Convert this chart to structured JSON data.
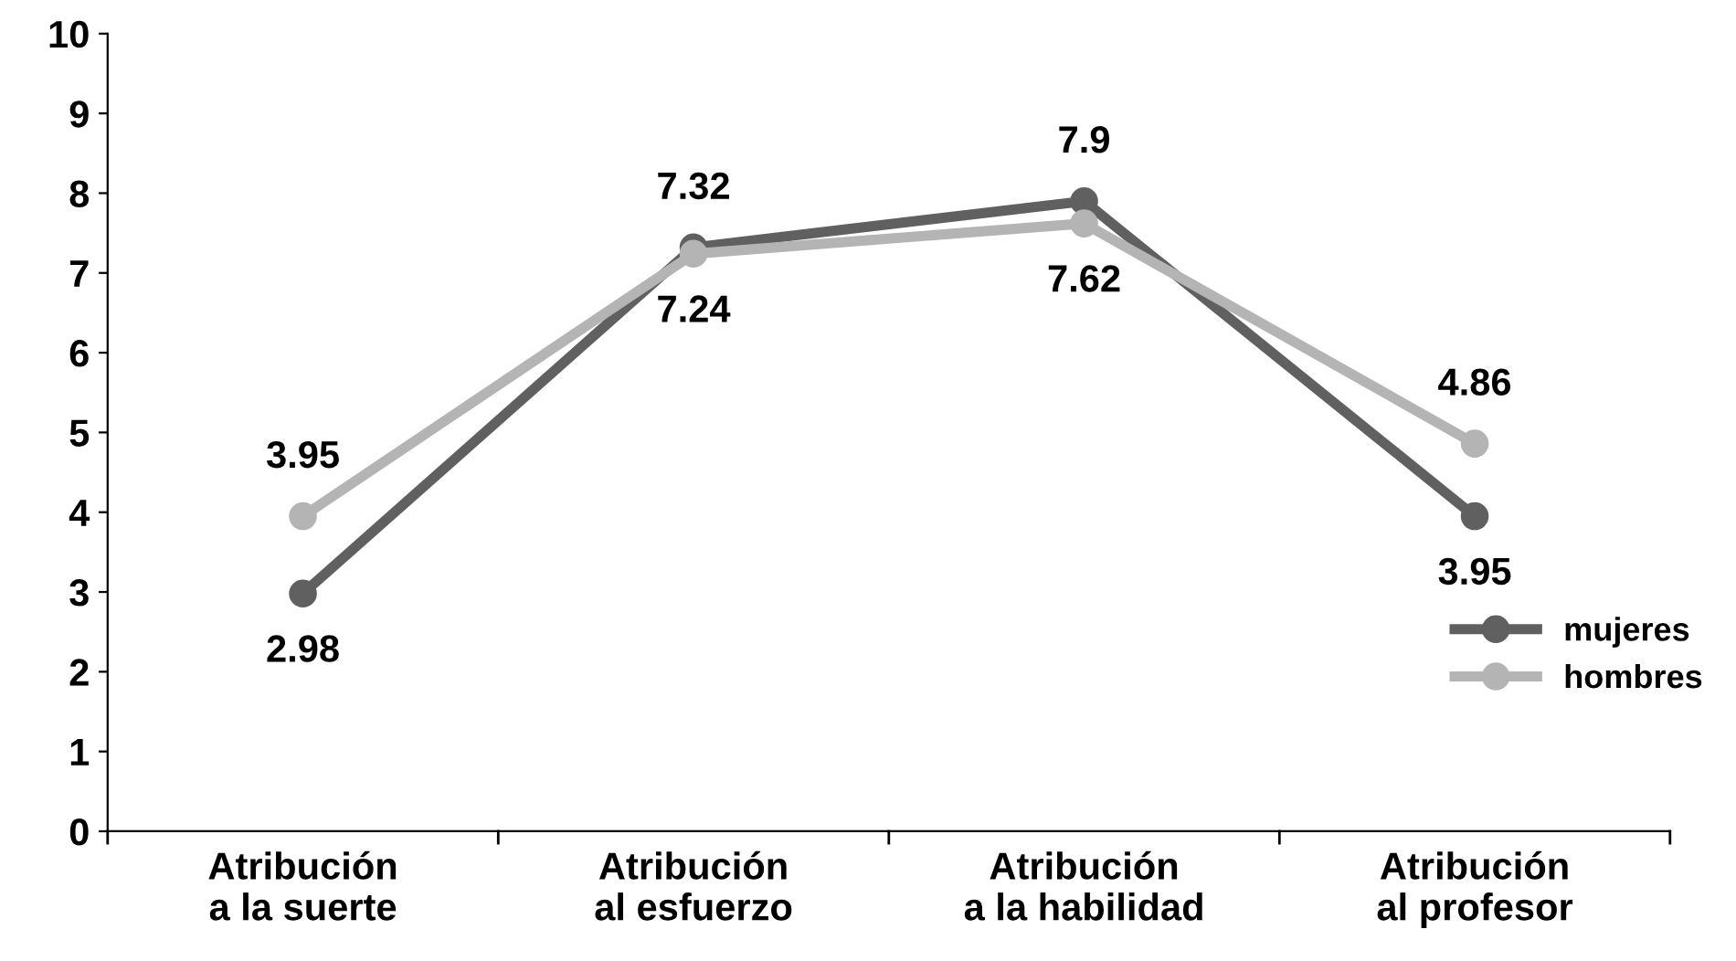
{
  "chart_data": {
    "type": "line",
    "categories": [
      "Atribución\na la suerte",
      "Atribución\nal esfuerzo",
      "Atribución\na la habilidad",
      "Atribución\nal profesor"
    ],
    "series": [
      {
        "name": "mujeres",
        "color": "#606060",
        "values": [
          2.98,
          7.32,
          7.9,
          3.95
        ]
      },
      {
        "name": "hombres",
        "color": "#b4b4b4",
        "values": [
          3.95,
          7.24,
          7.62,
          4.86
        ]
      }
    ],
    "ylim": [
      0,
      10
    ],
    "yticks": [
      0,
      1,
      2,
      3,
      4,
      5,
      6,
      7,
      8,
      9,
      10
    ],
    "grid": false,
    "legend": "right",
    "marker": "circle",
    "line_style": "solid",
    "data_labels": true
  }
}
